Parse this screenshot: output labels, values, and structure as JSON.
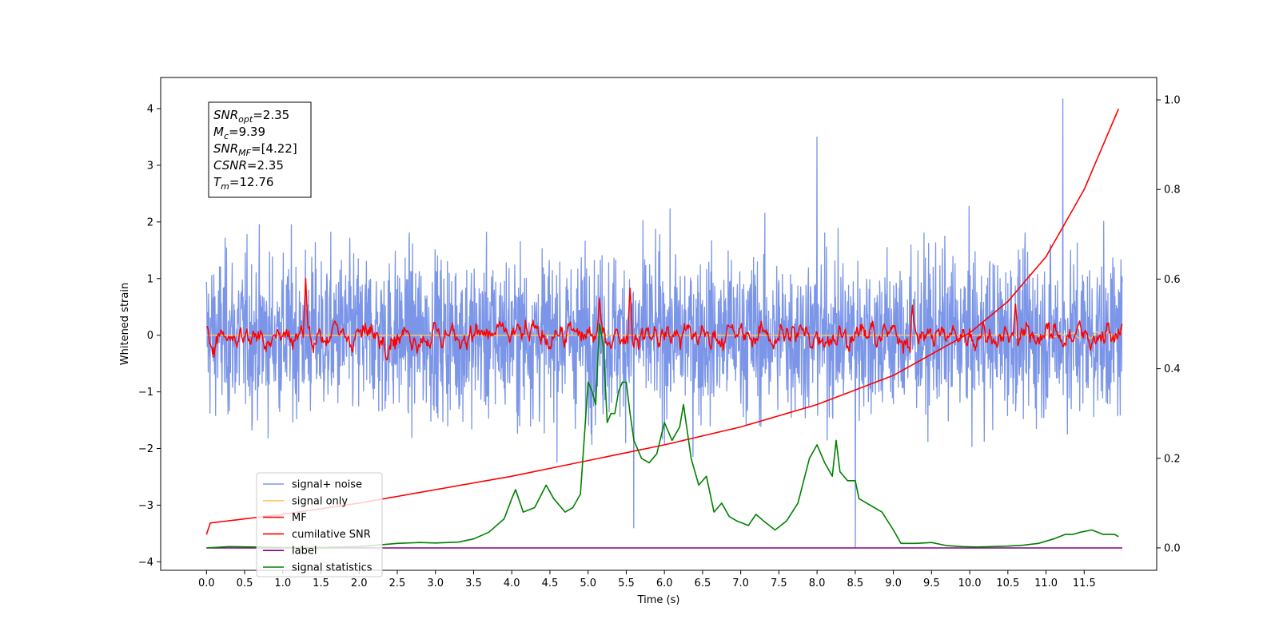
{
  "chart_data": {
    "type": "line",
    "xlabel": "Time (s)",
    "ylabel": "Whitened strain",
    "xlim": [
      -0.6,
      12.45
    ],
    "ylim": [
      -4.15,
      4.55
    ],
    "ylim_right": [
      -0.05,
      1.05
    ],
    "x_ticks": [
      "0.0",
      "0.5",
      "1.0",
      "1.5",
      "2.0",
      "2.5",
      "3.0",
      "3.5",
      "4.0",
      "4.5",
      "5.0",
      "5.5",
      "6.0",
      "6.5",
      "7.0",
      "7.5",
      "8.0",
      "8.5",
      "9.0",
      "9.5",
      "10.0",
      "10.5",
      "11.0",
      "11.5"
    ],
    "y_ticks": [
      "4",
      "3",
      "2",
      "1",
      "0",
      "−1",
      "−2",
      "−3",
      "−4"
    ],
    "y_ticks_right": [
      "1.0",
      "0.8",
      "0.6",
      "0.4",
      "0.2",
      "0.0"
    ],
    "legend_placement": "lower-left",
    "grid": false,
    "annotation": {
      "snr_opt": {
        "name": "SNR",
        "sub": "opt",
        "value": "=2.35"
      },
      "mc": {
        "name": "M",
        "sub": "c",
        "value": "=9.39"
      },
      "snr_mf": {
        "name": "SNR",
        "sub": "MF",
        "value": "=[4.22]"
      },
      "csnr": {
        "name": "CSNR",
        "value": "=2.35"
      },
      "tm": {
        "name": "T",
        "sub": "m",
        "value": "=12.76"
      }
    },
    "series": [
      {
        "name": "signal+ noise",
        "color": "#7b95e8",
        "axis": "left",
        "kind": "noise",
        "amplitude": 1.0,
        "x_range": [
          0,
          12.0
        ],
        "notable_spikes": [
          [
            8.5,
            -3.75
          ],
          [
            11.22,
            4.17
          ],
          [
            8.0,
            3.5
          ],
          [
            5.6,
            -3.4
          ]
        ]
      },
      {
        "name": "signal only",
        "color": "#ffc766",
        "axis": "left",
        "x": [
          0,
          2,
          4,
          6,
          8,
          10,
          11,
          11.5,
          12
        ],
        "y": [
          0,
          0,
          0,
          0,
          0,
          0,
          0.02,
          0.05,
          0.08
        ]
      },
      {
        "name": "MF",
        "color": "#ff0000",
        "axis": "left",
        "kind": "noise",
        "amplitude": 0.18,
        "x_range": [
          0,
          12.0
        ],
        "notable_peaks": [
          [
            1.3,
            1.0
          ],
          [
            5.15,
            0.65
          ],
          [
            5.55,
            0.83
          ],
          [
            9.25,
            0.53
          ],
          [
            10.6,
            0.55
          ]
        ]
      },
      {
        "name": "cumilative SNR",
        "color": "#ff0000",
        "axis": "right",
        "x": [
          0,
          0.02,
          1,
          2,
          3,
          4,
          5,
          6,
          7,
          8,
          9,
          10,
          10.5,
          11,
          11.5,
          12
        ],
        "y": [
          0.03,
          0.055,
          0.075,
          0.1,
          0.13,
          0.16,
          0.195,
          0.23,
          0.27,
          0.32,
          0.385,
          0.48,
          0.55,
          0.65,
          0.8,
          1.0
        ]
      },
      {
        "name": "label",
        "color": "#800080",
        "axis": "right",
        "x": [
          0,
          12
        ],
        "y": [
          0.0,
          0.0
        ]
      },
      {
        "name": "signal statistics",
        "color": "#008000",
        "axis": "right",
        "x": [
          0,
          0.3,
          0.6,
          1.0,
          1.5,
          2.0,
          2.5,
          2.8,
          3.0,
          3.3,
          3.5,
          3.7,
          3.9,
          4.0,
          4.05,
          4.15,
          4.3,
          4.45,
          4.55,
          4.7,
          4.8,
          4.9,
          5.0,
          5.05,
          5.1,
          5.15,
          5.2,
          5.25,
          5.3,
          5.35,
          5.4,
          5.45,
          5.5,
          5.55,
          5.6,
          5.7,
          5.8,
          5.9,
          6.0,
          6.1,
          6.2,
          6.25,
          6.35,
          6.45,
          6.55,
          6.65,
          6.75,
          6.85,
          6.95,
          7.1,
          7.2,
          7.3,
          7.45,
          7.6,
          7.75,
          7.9,
          8.0,
          8.1,
          8.2,
          8.25,
          8.3,
          8.4,
          8.5,
          8.55,
          8.65,
          8.75,
          8.85,
          9.0,
          9.1,
          9.3,
          9.5,
          9.7,
          9.9,
          10.1,
          10.3,
          10.5,
          10.7,
          10.9,
          11.1,
          11.25,
          11.35,
          11.45,
          11.6,
          11.75,
          11.9,
          11.95
        ],
        "y": [
          0.0,
          0.003,
          0.002,
          0.001,
          0.001,
          0.003,
          0.01,
          0.012,
          0.011,
          0.013,
          0.02,
          0.035,
          0.065,
          0.11,
          0.13,
          0.08,
          0.09,
          0.14,
          0.11,
          0.08,
          0.09,
          0.12,
          0.37,
          0.35,
          0.32,
          0.5,
          0.45,
          0.28,
          0.3,
          0.3,
          0.35,
          0.37,
          0.37,
          0.3,
          0.24,
          0.2,
          0.19,
          0.21,
          0.28,
          0.24,
          0.27,
          0.32,
          0.2,
          0.14,
          0.16,
          0.08,
          0.1,
          0.07,
          0.06,
          0.05,
          0.075,
          0.06,
          0.04,
          0.06,
          0.1,
          0.2,
          0.23,
          0.19,
          0.16,
          0.24,
          0.17,
          0.15,
          0.15,
          0.11,
          0.1,
          0.09,
          0.08,
          0.04,
          0.01,
          0.01,
          0.012,
          0.005,
          0.003,
          0.002,
          0.003,
          0.004,
          0.006,
          0.01,
          0.02,
          0.03,
          0.03,
          0.035,
          0.04,
          0.03,
          0.03,
          0.025
        ]
      }
    ]
  }
}
